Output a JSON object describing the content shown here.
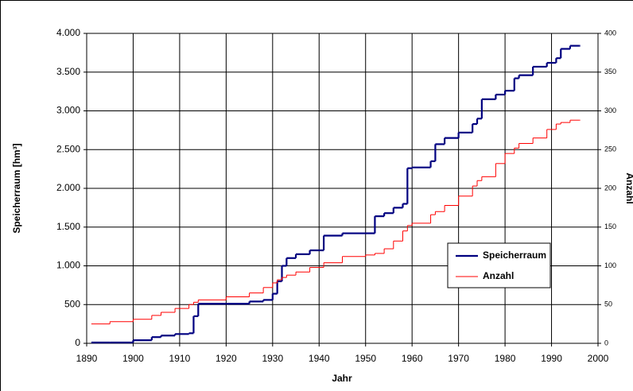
{
  "chart_data": {
    "type": "step",
    "xlabel": "Jahr",
    "ylabel": "Speicherraum [hm³]",
    "y2label": "Anzahl",
    "x": [
      1891,
      1895,
      1900,
      1904,
      1906,
      1909,
      1912,
      1913,
      1914,
      1920,
      1925,
      1928,
      1930,
      1931,
      1932,
      1933,
      1935,
      1938,
      1941,
      1945,
      1950,
      1952,
      1954,
      1956,
      1958,
      1959,
      1960,
      1964,
      1965,
      1967,
      1970,
      1973,
      1974,
      1975,
      1978,
      1980,
      1982,
      1983,
      1986,
      1989,
      1991,
      1992,
      1994,
      1996
    ],
    "series": [
      {
        "name": "Speicherraum",
        "color": "#000080",
        "values": [
          10,
          10,
          40,
          80,
          100,
          120,
          130,
          350,
          510,
          510,
          540,
          560,
          640,
          800,
          1000,
          1100,
          1150,
          1200,
          1390,
          1420,
          1420,
          1640,
          1680,
          1750,
          1800,
          2260,
          2270,
          2350,
          2570,
          2650,
          2720,
          2830,
          2900,
          3150,
          3210,
          3260,
          3420,
          3460,
          3570,
          3620,
          3680,
          3800,
          3840,
          3840
        ]
      },
      {
        "name": "Anzahl",
        "color": "#ff0000",
        "axis": "y2",
        "values": [
          25,
          28,
          31,
          36,
          40,
          45,
          50,
          53,
          56,
          60,
          65,
          72,
          78,
          82,
          85,
          88,
          92,
          98,
          104,
          112,
          114,
          116,
          122,
          132,
          145,
          152,
          155,
          166,
          170,
          178,
          190,
          203,
          210,
          215,
          232,
          245,
          252,
          258,
          265,
          276,
          283,
          285,
          288,
          288
        ]
      }
    ],
    "xlim": [
      1890,
      2000
    ],
    "xticks": [
      1890,
      1900,
      1910,
      1920,
      1930,
      1940,
      1950,
      1960,
      1970,
      1980,
      1990,
      2000
    ],
    "ylim": [
      0,
      4000
    ],
    "yticks": [
      0,
      500,
      {
        "value": 1000,
        "label": "1.000"
      },
      {
        "value": 1500,
        "label": "1.500"
      },
      {
        "value": 2000,
        "label": "2.000"
      },
      {
        "value": 2500,
        "label": "2.500"
      },
      {
        "value": 3000,
        "label": "3.000"
      },
      {
        "value": 3500,
        "label": "3.500"
      },
      {
        "value": 4000,
        "label": "4.000"
      }
    ],
    "y2lim": [
      0,
      400
    ],
    "y2ticks": [
      0,
      50,
      100,
      150,
      200,
      250,
      300,
      350,
      400
    ],
    "grid": true,
    "legend": "right"
  }
}
